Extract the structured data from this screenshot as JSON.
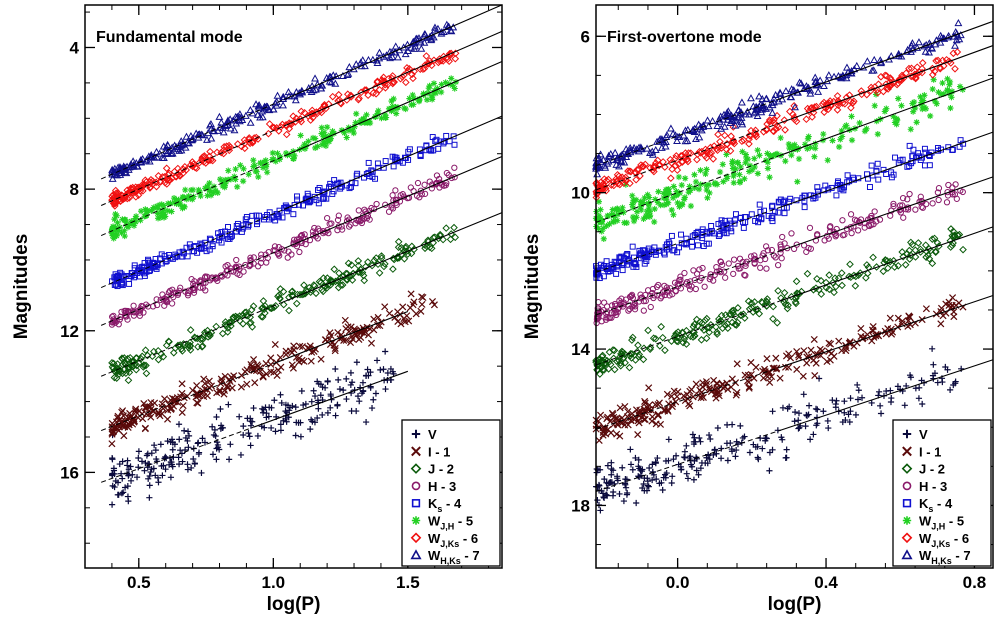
{
  "chart_data": [
    {
      "type": "scatter",
      "title": "Fundamental mode",
      "xlabel": "log(P)",
      "ylabel": "Magnitudes",
      "xlim": [
        0.3,
        1.85
      ],
      "ylim": [
        18.7,
        2.8
      ],
      "y_inverted": true,
      "xticks": [
        0.5,
        1.0,
        1.5
      ],
      "xtick_labels": [
        "0.5",
        "1.0",
        "1.5"
      ],
      "yticks": [
        4,
        8,
        12,
        16
      ],
      "ytick_labels": [
        "4",
        "8",
        "12",
        "16"
      ],
      "legend_position": "bottom-right",
      "x_range": [
        0.4,
        1.68
      ],
      "series": [
        {
          "name": "V",
          "marker": "plus",
          "color": "#0a0a3c",
          "fit": {
            "slope": -2.75,
            "intercept": 17.27,
            "x_end": 1.5
          },
          "x_max": 1.45,
          "scatter": 0.35
        },
        {
          "name": "I - 1",
          "marker": "cross",
          "color": "#5a0a0a",
          "fit": {
            "slope": -2.95,
            "intercept": 15.88,
            "x_end": 1.5
          },
          "x_max": 1.6,
          "scatter": 0.18
        },
        {
          "name": "J - 2",
          "marker": "diamond",
          "color": "#0a5a0a",
          "fit": {
            "slope": -3.1,
            "intercept": 14.4,
            "x_end": 1.85
          },
          "x_max": 1.68,
          "scatter": 0.14
        },
        {
          "name": "H - 3",
          "marker": "circle",
          "color": "#8a1a6a",
          "fit": {
            "slope": -3.2,
            "intercept": 13.0,
            "x_end": 1.85
          },
          "x_max": 1.68,
          "scatter": 0.12
        },
        {
          "name": "Ks - 4",
          "marker": "square",
          "color": "#1010d0",
          "fit": {
            "slope": -3.25,
            "intercept": 11.95,
            "x_end": 1.85
          },
          "x_max": 1.68,
          "scatter": 0.11
        },
        {
          "name": "WJ,H - 5",
          "marker": "asterisk",
          "color": "#22d022",
          "fit": {
            "slope": -3.3,
            "intercept": 10.5,
            "x_end": 1.85
          },
          "x_max": 1.68,
          "scatter": 0.13
        },
        {
          "name": "WJ,Ks - 6",
          "marker": "diamond",
          "color": "#f01010",
          "fit": {
            "slope": -3.3,
            "intercept": 9.65,
            "x_end": 1.85
          },
          "x_max": 1.68,
          "scatter": 0.1
        },
        {
          "name": "WH,Ks - 7",
          "marker": "triangle",
          "color": "#10108a",
          "fit": {
            "slope": -3.3,
            "intercept": 8.9,
            "x_end": 1.85
          },
          "x_max": 1.68,
          "scatter": 0.1
        }
      ]
    },
    {
      "type": "scatter",
      "title": "First-overtone mode",
      "xlabel": "log(P)",
      "ylabel": "Magnitudes",
      "xlim": [
        -0.22,
        0.85
      ],
      "ylim": [
        19.6,
        5.2
      ],
      "y_inverted": true,
      "xticks": [
        0.0,
        0.4,
        0.8
      ],
      "xtick_labels": [
        "0.0",
        "0.4",
        "0.8"
      ],
      "yticks": [
        6,
        10,
        14,
        18
      ],
      "ytick_labels": [
        "6",
        "10",
        "14",
        "18"
      ],
      "legend_position": "bottom-right",
      "x_range": [
        -0.22,
        0.77
      ],
      "series": [
        {
          "name": "V",
          "marker": "plus",
          "color": "#0a0a3c",
          "fit": {
            "slope": -3.15,
            "intercept": 16.95,
            "x_end": 0.85
          },
          "x_max": 0.77,
          "scatter": 0.3
        },
        {
          "name": "I - 1",
          "marker": "cross",
          "color": "#5a0a0a",
          "fit": {
            "slope": -3.2,
            "intercept": 15.35,
            "x_end": 0.85
          },
          "x_max": 0.77,
          "scatter": 0.18
        },
        {
          "name": "J - 2",
          "marker": "diamond",
          "color": "#0a5a0a",
          "fit": {
            "slope": -3.3,
            "intercept": 13.68,
            "x_end": 0.85
          },
          "x_max": 0.77,
          "scatter": 0.15
        },
        {
          "name": "H - 3",
          "marker": "circle",
          "color": "#8a1a6a",
          "fit": {
            "slope": -3.3,
            "intercept": 12.4,
            "x_end": 0.85
          },
          "x_max": 0.77,
          "scatter": 0.14
        },
        {
          "name": "Ks - 4",
          "marker": "square",
          "color": "#1010d0",
          "fit": {
            "slope": -3.35,
            "intercept": 11.3,
            "x_end": 0.85
          },
          "x_max": 0.77,
          "scatter": 0.13
        },
        {
          "name": "WJ,H - 5",
          "marker": "asterisk",
          "color": "#22d022",
          "fit": {
            "slope": -3.45,
            "intercept": 10.0,
            "x_end": 0.85
          },
          "x_max": 0.77,
          "scatter": 0.22
        },
        {
          "name": "WJ,Ks - 6",
          "marker": "diamond",
          "color": "#f01010",
          "fit": {
            "slope": -3.45,
            "intercept": 9.17,
            "x_end": 0.85
          },
          "x_max": 0.77,
          "scatter": 0.12
        },
        {
          "name": "WH,Ks - 7",
          "marker": "triangle",
          "color": "#10108a",
          "fit": {
            "slope": -3.45,
            "intercept": 8.55,
            "x_end": 0.85
          },
          "x_max": 0.77,
          "scatter": 0.12
        }
      ]
    }
  ],
  "legend_labels": [
    {
      "main": "V",
      "sub": "",
      "suffix": ""
    },
    {
      "main": "I - 1",
      "sub": "",
      "suffix": ""
    },
    {
      "main": "J - 2",
      "sub": "",
      "suffix": ""
    },
    {
      "main": "H - 3",
      "sub": "",
      "suffix": ""
    },
    {
      "main": "K",
      "sub": "s",
      "suffix": " - 4"
    },
    {
      "main": "W",
      "sub": "J,H",
      "suffix": " - 5"
    },
    {
      "main": "W",
      "sub": "J,Ks",
      "suffix": " - 6"
    },
    {
      "main": "W",
      "sub": "H,Ks",
      "suffix": " - 7"
    }
  ]
}
